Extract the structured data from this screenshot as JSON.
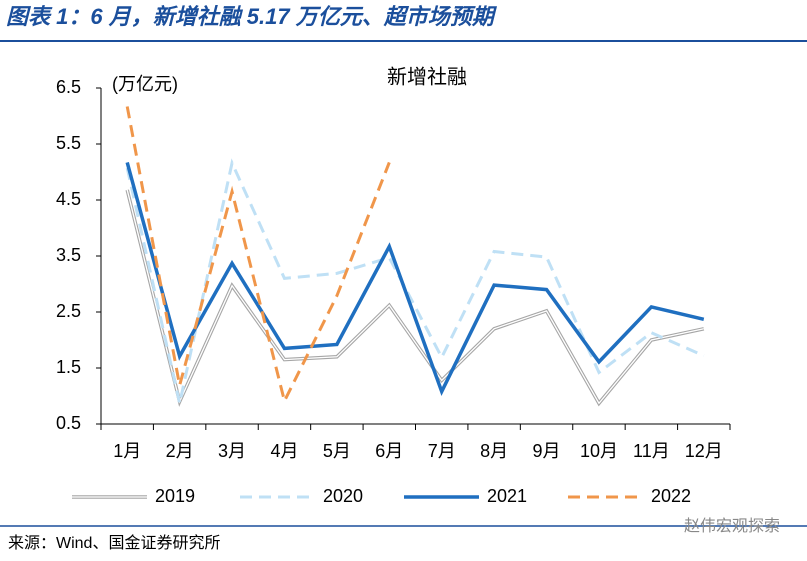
{
  "header": {
    "title": "图表 1：6 月，新增社融 5.17 万亿元、超市场预期"
  },
  "chart_data": {
    "type": "line",
    "title": "新增社融",
    "y_label": "(万亿元)",
    "categories": [
      "1月",
      "2月",
      "3月",
      "4月",
      "5月",
      "6月",
      "7月",
      "8月",
      "9月",
      "10月",
      "11月",
      "12月"
    ],
    "series": [
      {
        "name": "2019",
        "color": "#a6a6a6",
        "style": "double",
        "values": [
          4.68,
          0.9,
          2.97,
          1.65,
          1.7,
          2.62,
          1.28,
          2.2,
          2.52,
          0.87,
          2.0,
          2.2
        ]
      },
      {
        "name": "2020",
        "color": "#bfe0f5",
        "style": "dashed",
        "values": [
          5.07,
          0.87,
          5.16,
          3.1,
          3.19,
          3.47,
          1.69,
          3.58,
          3.48,
          1.42,
          2.13,
          1.72
        ]
      },
      {
        "name": "2021",
        "color": "#1f6fc0",
        "style": "solid",
        "values": [
          5.17,
          1.71,
          3.37,
          1.85,
          1.92,
          3.67,
          1.08,
          2.98,
          2.9,
          1.61,
          2.59,
          2.37
        ]
      },
      {
        "name": "2022",
        "color": "#f0964a",
        "style": "dashed",
        "values": [
          6.17,
          1.19,
          4.65,
          0.91,
          2.79,
          5.17,
          null,
          null,
          null,
          null,
          null,
          null
        ]
      }
    ],
    "ylim": [
      0.5,
      6.5
    ],
    "yticks": [
      0.5,
      1.5,
      2.5,
      3.5,
      4.5,
      5.5,
      6.5
    ],
    "legend": "bottom"
  },
  "footer": {
    "source": "来源：Wind、国金证券研究所",
    "watermark": "赵伟宏观探索"
  }
}
